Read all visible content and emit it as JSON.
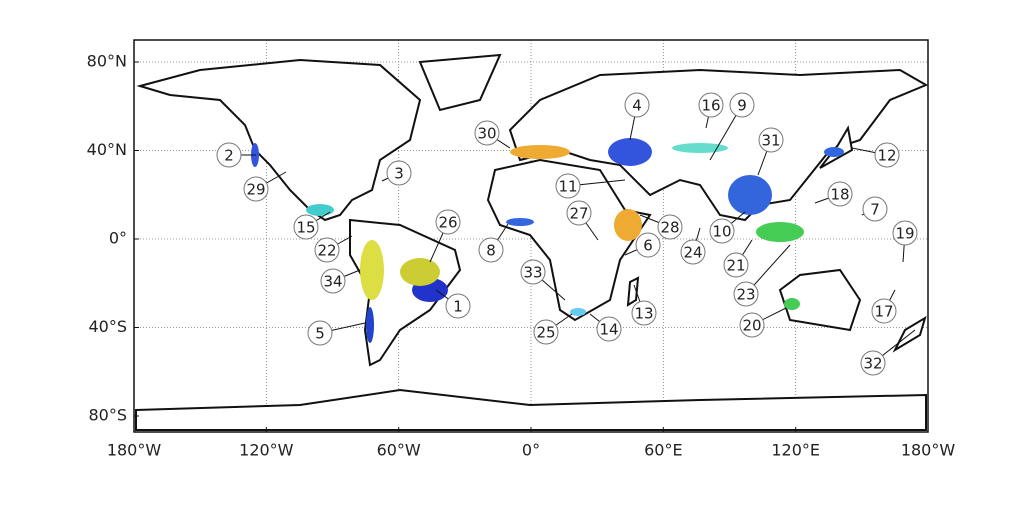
{
  "map": {
    "x_ticks": [
      {
        "value": -180,
        "label": "180°W"
      },
      {
        "value": -120,
        "label": "120°W"
      },
      {
        "value": -60,
        "label": "60°W"
      },
      {
        "value": 0,
        "label": "0°"
      },
      {
        "value": 60,
        "label": "60°E"
      },
      {
        "value": 120,
        "label": "120°E"
      },
      {
        "value": 180,
        "label": "180°W"
      }
    ],
    "y_ticks": [
      {
        "value": 80,
        "label": "80°N"
      },
      {
        "value": 40,
        "label": "40°N"
      },
      {
        "value": 0,
        "label": "0°"
      },
      {
        "value": -40,
        "label": "40°S"
      },
      {
        "value": -80,
        "label": "80°S"
      }
    ],
    "labels": [
      "1",
      "2",
      "3",
      "4",
      "5",
      "6",
      "7",
      "8",
      "9",
      "10",
      "11",
      "12",
      "13",
      "14",
      "15",
      "16",
      "17",
      "18",
      "19",
      "20",
      "21",
      "22",
      "23",
      "24",
      "25",
      "26",
      "27",
      "28",
      "29",
      "30",
      "31",
      "32",
      "33",
      "34"
    ]
  }
}
